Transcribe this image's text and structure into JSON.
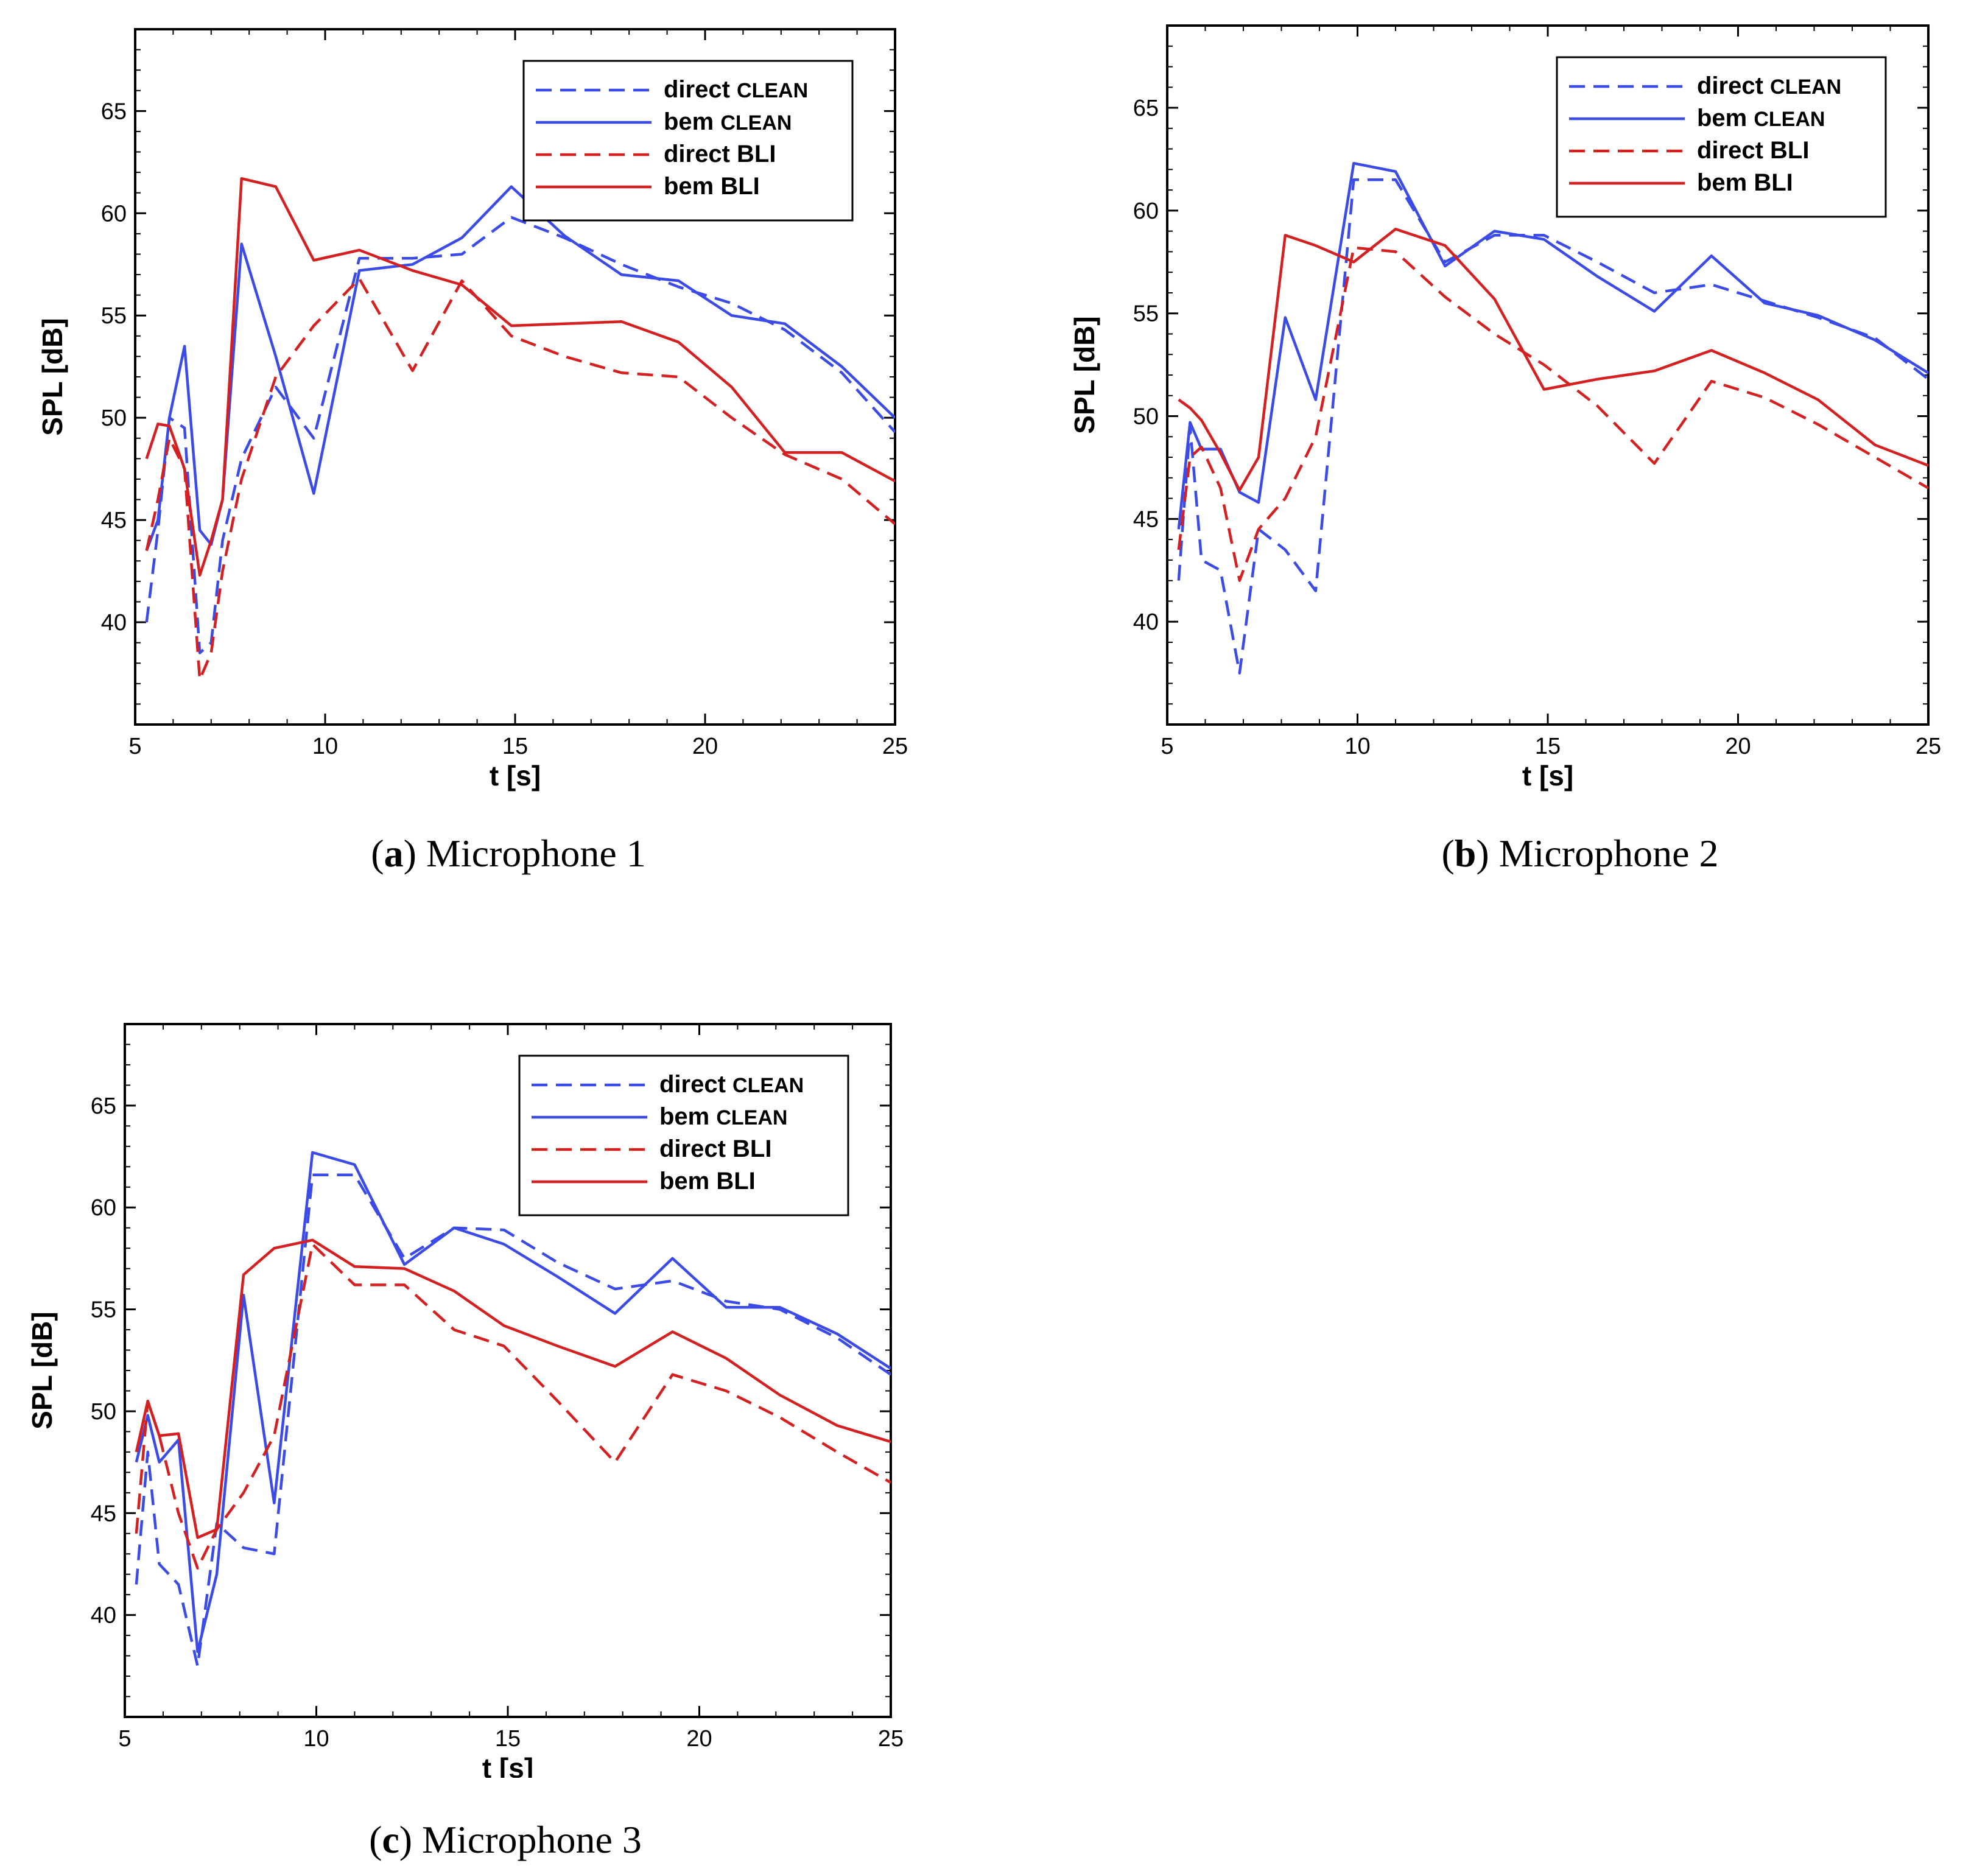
{
  "colors": {
    "clean": "#3b4be8",
    "bli": "#d42020",
    "axis": "#000000"
  },
  "chart_data": [
    {
      "type": "line",
      "panel_id": "a",
      "caption": {
        "label": "a",
        "text": "Microphone 1"
      },
      "xlabel": "t [s]",
      "ylabel": "SPL [dB]",
      "xlim": [
        5,
        25
      ],
      "ylim": [
        35,
        69
      ],
      "xticks": [
        5,
        10,
        15,
        20,
        25
      ],
      "yticks": [
        40,
        45,
        50,
        55,
        60,
        65
      ],
      "grid": false,
      "legend_position": "top-right",
      "series": [
        {
          "name": "direct",
          "subscript": "CLEAN",
          "color": "#3b4be8",
          "dash": true,
          "x": [
            5.3,
            5.6,
            5.9,
            6.3,
            6.7,
            7.0,
            7.3,
            7.8,
            8.7,
            9.7,
            10.9,
            12.3,
            13.6,
            14.9,
            16.3,
            17.8,
            19.3,
            20.7,
            22.1,
            23.6,
            25.0
          ],
          "y": [
            40.0,
            44.5,
            50.0,
            49.5,
            38.5,
            39.0,
            44.0,
            48.0,
            51.5,
            49.0,
            57.8,
            57.8,
            58.0,
            59.8,
            58.8,
            57.5,
            56.4,
            55.6,
            54.3,
            52.2,
            49.3
          ]
        },
        {
          "name": "bem",
          "subscript": "CLEAN",
          "color": "#3b4be8",
          "dash": false,
          "x": [
            5.3,
            5.6,
            5.9,
            6.3,
            6.7,
            7.0,
            7.3,
            7.8,
            8.7,
            9.7,
            10.9,
            12.3,
            13.6,
            14.9,
            16.3,
            17.8,
            19.3,
            20.7,
            22.1,
            23.6,
            25.0
          ],
          "y": [
            43.5,
            45.0,
            50.0,
            53.5,
            44.5,
            43.8,
            46.0,
            58.5,
            53.0,
            46.3,
            57.2,
            57.5,
            58.8,
            61.3,
            58.9,
            57.0,
            56.7,
            55.0,
            54.6,
            52.5,
            50.0
          ]
        },
        {
          "name": "direct",
          "subscript": "BLI",
          "color": "#d42020",
          "dash": true,
          "x": [
            5.3,
            5.6,
            5.9,
            6.3,
            6.7,
            7.0,
            7.3,
            7.8,
            8.7,
            9.7,
            10.9,
            12.3,
            13.6,
            14.9,
            16.3,
            17.8,
            19.3,
            20.7,
            22.1,
            23.6,
            25.0
          ],
          "y": [
            43.5,
            46.0,
            49.0,
            47.5,
            37.2,
            38.5,
            42.5,
            47.0,
            52.0,
            54.5,
            56.8,
            52.3,
            56.7,
            54.0,
            53.0,
            52.2,
            52.0,
            50.0,
            48.2,
            47.0,
            44.8
          ]
        },
        {
          "name": "bem",
          "subscript": "BLI",
          "color": "#d42020",
          "dash": false,
          "x": [
            5.3,
            5.6,
            5.9,
            6.3,
            6.7,
            7.0,
            7.3,
            7.8,
            8.7,
            9.7,
            10.9,
            12.3,
            13.6,
            14.9,
            16.3,
            17.8,
            19.3,
            20.7,
            22.1,
            23.6,
            25.0
          ],
          "y": [
            48.0,
            49.7,
            49.6,
            47.5,
            42.3,
            44.0,
            46.0,
            61.7,
            61.3,
            57.7,
            58.2,
            57.2,
            56.5,
            54.5,
            54.6,
            54.7,
            53.7,
            51.5,
            48.3,
            48.3,
            46.9
          ]
        }
      ]
    },
    {
      "type": "line",
      "panel_id": "b",
      "caption": {
        "label": "b",
        "text": "Microphone 2"
      },
      "xlabel": "t [s]",
      "ylabel": "SPL [dB]",
      "xlim": [
        5,
        25
      ],
      "ylim": [
        35,
        69
      ],
      "xticks": [
        5,
        10,
        15,
        20,
        25
      ],
      "yticks": [
        40,
        45,
        50,
        55,
        60,
        65
      ],
      "grid": false,
      "legend_position": "top-right",
      "series": [
        {
          "name": "direct",
          "subscript": "CLEAN",
          "color": "#3b4be8",
          "dash": true,
          "x": [
            5.3,
            5.6,
            5.9,
            6.4,
            6.9,
            7.4,
            8.1,
            8.9,
            9.9,
            11.0,
            12.3,
            13.6,
            14.9,
            16.3,
            17.8,
            19.3,
            20.7,
            22.1,
            23.6,
            25.0
          ],
          "y": [
            42.0,
            49.5,
            43.0,
            42.5,
            37.5,
            44.5,
            43.5,
            41.5,
            61.5,
            61.5,
            57.5,
            58.8,
            58.8,
            57.5,
            56.0,
            56.4,
            55.6,
            54.8,
            53.8,
            51.8
          ]
        },
        {
          "name": "bem",
          "subscript": "CLEAN",
          "color": "#3b4be8",
          "dash": false,
          "x": [
            5.3,
            5.6,
            5.9,
            6.4,
            6.9,
            7.4,
            8.1,
            8.9,
            9.9,
            11.0,
            12.3,
            13.6,
            14.9,
            16.3,
            17.8,
            19.3,
            20.7,
            22.1,
            23.6,
            25.0
          ],
          "y": [
            44.5,
            49.7,
            48.4,
            48.4,
            46.3,
            45.8,
            54.8,
            50.8,
            62.3,
            61.9,
            57.3,
            59.0,
            58.6,
            56.8,
            55.1,
            57.8,
            55.5,
            54.9,
            53.7,
            52.1
          ]
        },
        {
          "name": "direct",
          "subscript": "BLI",
          "color": "#d42020",
          "dash": true,
          "x": [
            5.3,
            5.6,
            5.9,
            6.4,
            6.9,
            7.4,
            8.1,
            8.9,
            9.9,
            11.0,
            12.3,
            13.6,
            14.9,
            16.3,
            17.8,
            19.3,
            20.7,
            22.1,
            23.6,
            25.0
          ],
          "y": [
            43.5,
            48.0,
            48.5,
            46.5,
            42.0,
            44.5,
            46.0,
            49.0,
            58.2,
            58.0,
            55.8,
            54.0,
            52.5,
            50.5,
            47.7,
            51.7,
            50.9,
            49.6,
            48.0,
            46.5
          ]
        },
        {
          "name": "bem",
          "subscript": "BLI",
          "color": "#d42020",
          "dash": false,
          "x": [
            5.3,
            5.6,
            5.9,
            6.4,
            6.9,
            7.4,
            8.1,
            8.9,
            9.9,
            11.0,
            12.3,
            13.6,
            14.9,
            16.3,
            17.8,
            19.3,
            20.7,
            22.1,
            23.6,
            25.0
          ],
          "y": [
            50.8,
            50.4,
            49.8,
            48.2,
            46.4,
            48.0,
            58.8,
            58.3,
            57.5,
            59.1,
            58.3,
            55.7,
            51.3,
            51.8,
            52.2,
            53.2,
            52.1,
            50.8,
            48.6,
            47.6
          ]
        }
      ]
    },
    {
      "type": "line",
      "panel_id": "c",
      "caption": {
        "label": "c",
        "text": "Microphone 3"
      },
      "xlabel": "t [s]",
      "ylabel": "SPL [dB]",
      "xlim": [
        5,
        25
      ],
      "ylim": [
        35,
        69
      ],
      "xticks": [
        5,
        10,
        15,
        20,
        25
      ],
      "yticks": [
        40,
        45,
        50,
        55,
        60,
        65
      ],
      "grid": false,
      "legend_position": "top-right",
      "series": [
        {
          "name": "direct",
          "subscript": "CLEAN",
          "color": "#3b4be8",
          "dash": true,
          "x": [
            5.3,
            5.6,
            5.9,
            6.4,
            6.9,
            7.4,
            8.1,
            8.9,
            9.9,
            11.0,
            12.3,
            13.6,
            14.9,
            16.3,
            17.8,
            19.3,
            20.7,
            22.1,
            23.6,
            25.0
          ],
          "y": [
            41.5,
            48.0,
            42.5,
            41.5,
            37.5,
            44.5,
            43.3,
            43.0,
            61.6,
            61.6,
            57.5,
            59.0,
            58.9,
            57.3,
            56.0,
            56.4,
            55.4,
            55.0,
            53.6,
            51.8
          ]
        },
        {
          "name": "bem",
          "subscript": "CLEAN",
          "color": "#3b4be8",
          "dash": false,
          "x": [
            5.3,
            5.6,
            5.9,
            6.4,
            6.9,
            7.4,
            8.1,
            8.9,
            9.9,
            11.0,
            12.3,
            13.6,
            14.9,
            16.3,
            17.8,
            19.3,
            20.7,
            22.1,
            23.6,
            25.0
          ],
          "y": [
            47.5,
            49.8,
            47.5,
            48.6,
            38.2,
            42.0,
            55.7,
            45.5,
            62.7,
            62.1,
            57.2,
            59.0,
            58.2,
            56.6,
            54.8,
            57.5,
            55.1,
            55.1,
            53.8,
            52.1
          ]
        },
        {
          "name": "direct",
          "subscript": "BLI",
          "color": "#d42020",
          "dash": true,
          "x": [
            5.3,
            5.6,
            5.9,
            6.4,
            6.9,
            7.4,
            8.1,
            8.9,
            9.9,
            11.0,
            12.3,
            13.6,
            14.9,
            16.3,
            17.8,
            19.3,
            20.7,
            22.1,
            23.6,
            25.0
          ],
          "y": [
            44.0,
            50.5,
            48.8,
            45.0,
            42.3,
            44.2,
            46.0,
            48.8,
            58.2,
            56.2,
            56.2,
            54.0,
            53.2,
            50.5,
            47.5,
            51.8,
            51.0,
            49.7,
            48.0,
            46.5
          ]
        },
        {
          "name": "bem",
          "subscript": "BLI",
          "color": "#d42020",
          "dash": false,
          "x": [
            5.3,
            5.6,
            5.9,
            6.4,
            6.9,
            7.4,
            8.1,
            8.9,
            9.9,
            11.0,
            12.3,
            13.6,
            14.9,
            16.3,
            17.8,
            19.3,
            20.7,
            22.1,
            23.6,
            25.0
          ],
          "y": [
            48.0,
            50.5,
            48.8,
            48.9,
            43.8,
            44.2,
            56.7,
            58.0,
            58.4,
            57.1,
            57.0,
            55.9,
            54.2,
            53.2,
            52.2,
            53.9,
            52.6,
            50.8,
            49.3,
            48.5
          ]
        }
      ]
    }
  ]
}
